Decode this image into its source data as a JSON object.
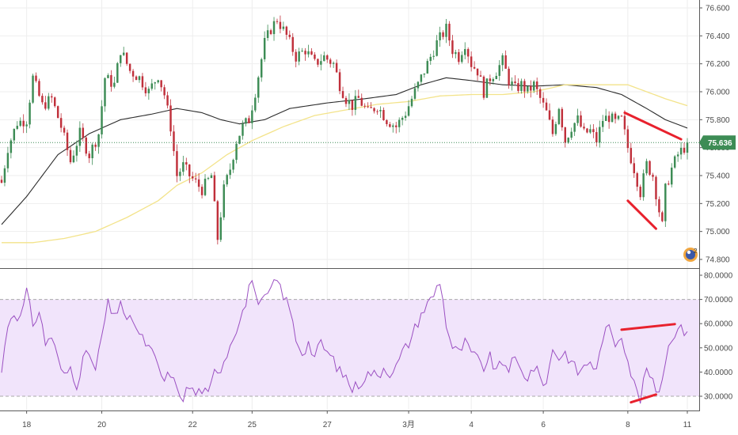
{
  "chart_data": [
    {
      "type": "candlestick",
      "ylim": [
        74.75,
        76.62
      ],
      "y_ticks": [
        "76.600",
        "76.400",
        "76.200",
        "76.000",
        "75.800",
        "75.600",
        "75.400",
        "75.200",
        "75.000",
        "74.800"
      ],
      "y_tick_values": [
        76.6,
        76.4,
        76.2,
        76.0,
        75.8,
        75.6,
        75.4,
        75.2,
        75.0,
        74.8
      ],
      "x_labels": [
        "18",
        "20",
        "22",
        "25",
        "27",
        "3月",
        "4",
        "6",
        "8",
        "11"
      ],
      "x_label_index": [
        8,
        32,
        61,
        80,
        104,
        130,
        150,
        173,
        200,
        219
      ],
      "n_bars": 220,
      "close_anchors": [
        [
          0,
          75.35
        ],
        [
          2,
          75.6
        ],
        [
          5,
          75.78
        ],
        [
          8,
          75.8
        ],
        [
          10,
          76.1
        ],
        [
          13,
          75.9
        ],
        [
          16,
          75.95
        ],
        [
          19,
          75.75
        ],
        [
          22,
          75.5
        ],
        [
          25,
          75.7
        ],
        [
          28,
          75.55
        ],
        [
          31,
          75.7
        ],
        [
          33,
          76.1
        ],
        [
          36,
          76.05
        ],
        [
          38,
          76.3
        ],
        [
          41,
          76.15
        ],
        [
          44,
          76.1
        ],
        [
          47,
          76.0
        ],
        [
          50,
          76.12
        ],
        [
          52,
          75.98
        ],
        [
          54,
          75.75
        ],
        [
          56,
          75.4
        ],
        [
          58,
          75.47
        ],
        [
          60,
          75.4
        ],
        [
          62,
          75.35
        ],
        [
          64,
          75.3
        ],
        [
          67,
          75.4
        ],
        [
          69,
          74.95
        ],
        [
          71,
          75.3
        ],
        [
          73,
          75.45
        ],
        [
          75,
          75.65
        ],
        [
          77,
          75.75
        ],
        [
          79,
          75.8
        ],
        [
          81,
          76.0
        ],
        [
          84,
          76.35
        ],
        [
          86,
          76.45
        ],
        [
          88,
          76.52
        ],
        [
          91,
          76.4
        ],
        [
          94,
          76.25
        ],
        [
          97,
          76.3
        ],
        [
          100,
          76.2
        ],
        [
          103,
          76.25
        ],
        [
          106,
          76.2
        ],
        [
          108,
          76.05
        ],
        [
          110,
          75.95
        ],
        [
          112,
          75.9
        ],
        [
          114,
          75.95
        ],
        [
          117,
          75.85
        ],
        [
          120,
          75.9
        ],
        [
          123,
          75.8
        ],
        [
          126,
          75.75
        ],
        [
          129,
          75.85
        ],
        [
          132,
          76.0
        ],
        [
          134,
          76.1
        ],
        [
          136,
          76.2
        ],
        [
          139,
          76.35
        ],
        [
          142,
          76.45
        ],
        [
          144,
          76.3
        ],
        [
          146,
          76.25
        ],
        [
          148,
          76.35
        ],
        [
          150,
          76.2
        ],
        [
          152,
          76.15
        ],
        [
          154,
          76.0
        ],
        [
          156,
          76.1
        ],
        [
          158,
          76.15
        ],
        [
          160,
          76.22
        ],
        [
          162,
          76.08
        ],
        [
          164,
          76.02
        ],
        [
          166,
          76.05
        ],
        [
          168,
          76.0
        ],
        [
          170,
          76.05
        ],
        [
          172,
          75.95
        ],
        [
          174,
          75.85
        ],
        [
          176,
          75.7
        ],
        [
          178,
          75.9
        ],
        [
          180,
          75.65
        ],
        [
          182,
          75.75
        ],
        [
          184,
          75.8
        ],
        [
          186,
          75.7
        ],
        [
          188,
          75.72
        ],
        [
          190,
          75.65
        ],
        [
          192,
          75.8
        ],
        [
          194,
          75.82
        ],
        [
          196,
          75.78
        ],
        [
          198,
          75.8
        ],
        [
          200,
          75.6
        ],
        [
          202,
          75.45
        ],
        [
          204,
          75.28
        ],
        [
          206,
          75.48
        ],
        [
          208,
          75.4
        ],
        [
          210,
          75.15
        ],
        [
          211,
          75.04
        ],
        [
          212,
          75.3
        ],
        [
          214,
          75.45
        ],
        [
          216,
          75.55
        ],
        [
          218,
          75.6
        ],
        [
          219,
          75.636
        ]
      ],
      "last_price": "75.636",
      "series": [
        {
          "name": "",
          "kind": "moving-average",
          "color": "#2b2b2b",
          "anchors": [
            [
              0,
              75.05
            ],
            [
              8,
              75.25
            ],
            [
              18,
              75.55
            ],
            [
              28,
              75.7
            ],
            [
              38,
              75.8
            ],
            [
              48,
              75.84
            ],
            [
              56,
              75.88
            ],
            [
              64,
              75.85
            ],
            [
              70,
              75.8
            ],
            [
              76,
              75.77
            ],
            [
              84,
              75.8
            ],
            [
              92,
              75.88
            ],
            [
              104,
              75.92
            ],
            [
              116,
              75.95
            ],
            [
              126,
              75.98
            ],
            [
              134,
              76.05
            ],
            [
              142,
              76.1
            ],
            [
              150,
              76.08
            ],
            [
              160,
              76.05
            ],
            [
              170,
              76.04
            ],
            [
              180,
              76.05
            ],
            [
              190,
              76.03
            ],
            [
              198,
              75.98
            ],
            [
              206,
              75.88
            ],
            [
              212,
              75.8
            ],
            [
              219,
              75.74
            ]
          ]
        },
        {
          "name": "",
          "kind": "moving-average",
          "color": "#f3e38a",
          "anchors": [
            [
              0,
              74.92
            ],
            [
              10,
              74.92
            ],
            [
              20,
              74.95
            ],
            [
              30,
              75.0
            ],
            [
              40,
              75.1
            ],
            [
              50,
              75.22
            ],
            [
              56,
              75.33
            ],
            [
              64,
              75.42
            ],
            [
              72,
              75.55
            ],
            [
              80,
              75.65
            ],
            [
              90,
              75.75
            ],
            [
              100,
              75.83
            ],
            [
              110,
              75.87
            ],
            [
              120,
              75.91
            ],
            [
              130,
              75.93
            ],
            [
              140,
              75.97
            ],
            [
              150,
              75.98
            ],
            [
              160,
              75.98
            ],
            [
              170,
              76.0
            ],
            [
              180,
              76.05
            ],
            [
              190,
              76.05
            ],
            [
              200,
              76.05
            ],
            [
              206,
              76.0
            ],
            [
              212,
              75.95
            ],
            [
              219,
              75.9
            ]
          ]
        }
      ],
      "drawn_lines": [
        {
          "color": "#e8212d",
          "from": [
            199,
            75.85
          ],
          "to": [
            217,
            75.66
          ]
        },
        {
          "color": "#e8212d",
          "from": [
            200,
            75.22
          ],
          "to": [
            209,
            75.02
          ]
        }
      ],
      "colors": {
        "up": "#3d8c55",
        "down": "#c0303b",
        "last_price_tag": "#3d8c55",
        "last_price_line": "#3d8c55"
      },
      "grid": true
    },
    {
      "type": "line",
      "ylim": [
        25.0,
        80.5
      ],
      "y_ticks": [
        "80.0000",
        "70.0000",
        "60.0000",
        "50.0000",
        "40.0000",
        "30.0000"
      ],
      "y_tick_values": [
        80,
        70,
        60,
        50,
        40,
        30
      ],
      "band": [
        30,
        70
      ],
      "band_color": "#f1e4fb",
      "series": [
        {
          "name": "",
          "color": "#9b50c2",
          "anchors": [
            [
              0,
              40
            ],
            [
              2,
              60
            ],
            [
              4,
              65
            ],
            [
              6,
              62
            ],
            [
              8,
              73
            ],
            [
              10,
              60
            ],
            [
              12,
              65
            ],
            [
              14,
              52
            ],
            [
              16,
              55
            ],
            [
              18,
              45
            ],
            [
              20,
              38
            ],
            [
              22,
              42
            ],
            [
              24,
              35
            ],
            [
              26,
              45
            ],
            [
              28,
              48
            ],
            [
              30,
              40
            ],
            [
              32,
              55
            ],
            [
              34,
              68
            ],
            [
              36,
              62
            ],
            [
              38,
              70
            ],
            [
              40,
              60
            ],
            [
              42,
              62
            ],
            [
              44,
              55
            ],
            [
              46,
              52
            ],
            [
              48,
              48
            ],
            [
              50,
              42
            ],
            [
              52,
              36
            ],
            [
              54,
              40
            ],
            [
              56,
              32
            ],
            [
              58,
              30
            ],
            [
              60,
              34
            ],
            [
              62,
              31
            ],
            [
              64,
              33
            ],
            [
              66,
              30
            ],
            [
              68,
              40
            ],
            [
              70,
              42
            ],
            [
              72,
              48
            ],
            [
              74,
              55
            ],
            [
              76,
              62
            ],
            [
              78,
              68
            ],
            [
              80,
              80
            ],
            [
              82,
              66
            ],
            [
              84,
              70
            ],
            [
              86,
              74
            ],
            [
              88,
              78
            ],
            [
              90,
              72
            ],
            [
              92,
              66
            ],
            [
              94,
              54
            ],
            [
              96,
              48
            ],
            [
              98,
              52
            ],
            [
              100,
              46
            ],
            [
              102,
              52
            ],
            [
              104,
              48
            ],
            [
              106,
              45
            ],
            [
              108,
              40
            ],
            [
              110,
              38
            ],
            [
              112,
              33
            ],
            [
              114,
              35
            ],
            [
              116,
              38
            ],
            [
              118,
              40
            ],
            [
              120,
              38
            ],
            [
              122,
              42
            ],
            [
              124,
              40
            ],
            [
              126,
              42
            ],
            [
              128,
              48
            ],
            [
              130,
              52
            ],
            [
              132,
              58
            ],
            [
              134,
              64
            ],
            [
              136,
              68
            ],
            [
              138,
              72
            ],
            [
              140,
              78
            ],
            [
              142,
              60
            ],
            [
              144,
              50
            ],
            [
              146,
              48
            ],
            [
              148,
              52
            ],
            [
              150,
              48
            ],
            [
              152,
              45
            ],
            [
              154,
              42
            ],
            [
              156,
              46
            ],
            [
              158,
              40
            ],
            [
              160,
              44
            ],
            [
              162,
              42
            ],
            [
              164,
              45
            ],
            [
              166,
              40
            ],
            [
              168,
              38
            ],
            [
              170,
              42
            ],
            [
              172,
              38
            ],
            [
              174,
              35
            ],
            [
              176,
              50
            ],
            [
              178,
              46
            ],
            [
              180,
              48
            ],
            [
              182,
              44
            ],
            [
              184,
              40
            ],
            [
              186,
              42
            ],
            [
              188,
              45
            ],
            [
              190,
              40
            ],
            [
              192,
              55
            ],
            [
              194,
              58
            ],
            [
              196,
              52
            ],
            [
              198,
              56
            ],
            [
              200,
              45
            ],
            [
              202,
              35
            ],
            [
              204,
              28
            ],
            [
              206,
              42
            ],
            [
              208,
              35
            ],
            [
              210,
              32
            ],
            [
              212,
              45
            ],
            [
              214,
              55
            ],
            [
              216,
              58
            ],
            [
              218,
              57
            ],
            [
              219,
              58
            ]
          ]
        }
      ],
      "drawn_lines": [
        {
          "color": "#e8212d",
          "from": [
            198,
            57.5
          ],
          "to": [
            215,
            59.8
          ]
        },
        {
          "color": "#e8212d",
          "from": [
            201,
            27.5
          ],
          "to": [
            209,
            30.7
          ]
        }
      ]
    }
  ]
}
